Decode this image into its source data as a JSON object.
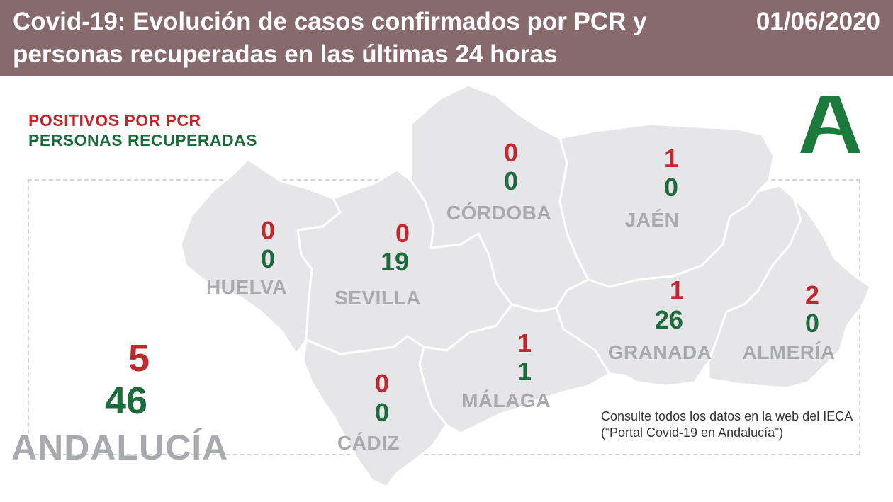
{
  "header": {
    "title": "Covid-19: Evolución de casos confirmados por PCR y personas recuperadas en las últimas 24 horas",
    "date": "01/06/2020"
  },
  "legend": {
    "positives": "POSITIVOS POR PCR",
    "recovered": "PERSONAS RECUPERADAS"
  },
  "colors": {
    "header_bg": "#866a6c",
    "positives": "#c0282e",
    "recovered": "#1b6b3c",
    "map_fill": "#e6e6e8",
    "label_gray": "#a9aaae",
    "logo_green": "#1c7a3c"
  },
  "provinces": [
    {
      "name": "HUELVA",
      "positives": "0",
      "recovered": "0"
    },
    {
      "name": "SEVILLA",
      "positives": "0",
      "recovered": "19"
    },
    {
      "name": "CÓRDOBA",
      "positives": "0",
      "recovered": "0"
    },
    {
      "name": "JAÉN",
      "positives": "1",
      "recovered": "0"
    },
    {
      "name": "GRANADA",
      "positives": "1",
      "recovered": "26"
    },
    {
      "name": "ALMERÍA",
      "positives": "2",
      "recovered": "0"
    },
    {
      "name": "MÁLAGA",
      "positives": "1",
      "recovered": "1"
    },
    {
      "name": "CÁDIZ",
      "positives": "0",
      "recovered": "0"
    }
  ],
  "total": {
    "name": "ANDALUCÍA",
    "positives": "5",
    "recovered": "46"
  },
  "note": "Consulte todos los datos en la web del IECA (“Portal Covid-19 en Andalucía”)",
  "logo": {
    "icon": "junta-de-andalucia-logo-icon"
  }
}
